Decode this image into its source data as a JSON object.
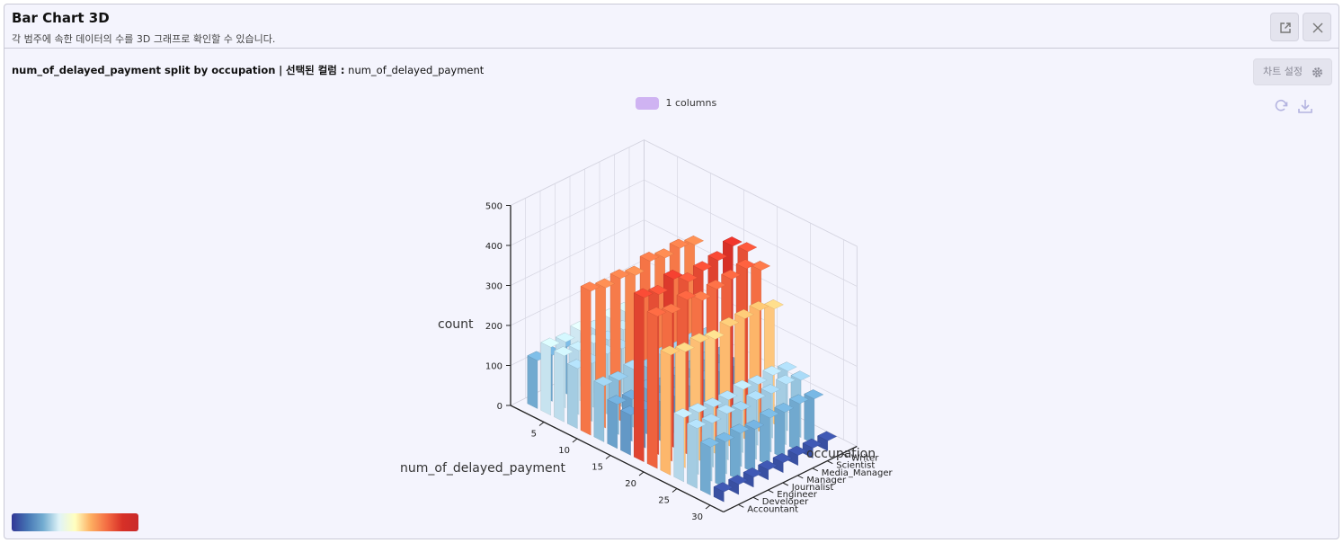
{
  "header": {
    "title": "Bar Chart 3D",
    "subtitle": "각 범주에 속한 데이터의 수를 3D 그래프로 확인할 수 있습니다."
  },
  "caption": {
    "main": "num_of_delayed_payment split by occupation",
    "separator": "|",
    "selected_label": "선택된 컬럼 :",
    "selected_value": "num_of_delayed_payment"
  },
  "settings_label": "차트 설정",
  "legend_label": "1 columns",
  "icons": {
    "expand": "external-link-icon",
    "close": "close-icon",
    "settings": "gear-icon",
    "refresh": "refresh-icon",
    "download": "download-icon"
  },
  "colors": {
    "accent_legend": "#cfb3f2",
    "colorscale": [
      "#313695",
      "#4575b4",
      "#74add1",
      "#e0f3f8",
      "#ffffbf",
      "#fdae61",
      "#f46d43",
      "#d73027"
    ]
  },
  "chart_data": {
    "type": "bar3d",
    "xlabel": "num_of_delayed_payment",
    "ylabel": "occupation",
    "zlabel": "count",
    "x_ticks": [
      "5",
      "10",
      "15",
      "20",
      "25",
      "30"
    ],
    "y_ticks": [
      "Accountant",
      "Developer",
      "Engineer",
      "Journalist",
      "Manager",
      "Media_Manager",
      "Scientist",
      "Writer"
    ],
    "z_ticks": [
      "0",
      "100",
      "200",
      "300",
      "400",
      "500"
    ],
    "zlim": [
      0,
      500
    ],
    "x_values": [
      0,
      2,
      4,
      6,
      8,
      10,
      12,
      14,
      16,
      18,
      20,
      22,
      24,
      26,
      28
    ],
    "occupations": [
      "Accountant",
      "Developer",
      "Engineer",
      "Journalist",
      "Manager",
      "Media_Manager",
      "Scientist",
      "Writer"
    ],
    "series": [
      {
        "name": "Accountant",
        "values": [
          120,
          170,
          165,
          150,
          360,
          140,
          110,
          100,
          410,
          380,
          300,
          160,
          150,
          120,
          25
        ]
      },
      {
        "name": "Developer",
        "values": [
          115,
          165,
          160,
          145,
          350,
          135,
          105,
          95,
          400,
          370,
          290,
          155,
          145,
          115,
          25
        ]
      },
      {
        "name": "Engineer",
        "values": [
          118,
          175,
          160,
          150,
          355,
          145,
          112,
          98,
          420,
          385,
          295,
          150,
          150,
          118,
          25
        ]
      },
      {
        "name": "Journalist",
        "values": [
          112,
          160,
          150,
          145,
          345,
          130,
          100,
          92,
          395,
          365,
          285,
          150,
          140,
          110,
          25
        ]
      },
      {
        "name": "Manager",
        "values": [
          122,
          170,
          158,
          148,
          362,
          142,
          108,
          100,
          405,
          375,
          298,
          158,
          148,
          120,
          25
        ]
      },
      {
        "name": "Media_Manager",
        "values": [
          117,
          168,
          162,
          147,
          352,
          138,
          106,
          97,
          412,
          382,
          300,
          152,
          146,
          116,
          25
        ]
      },
      {
        "name": "Scientist",
        "values": [
          119,
          172,
          166,
          152,
          358,
          141,
          110,
          99,
          430,
          390,
          302,
          157,
          151,
          119,
          25
        ]
      },
      {
        "name": "Writer",
        "values": [
          114,
          166,
          155,
          146,
          348,
          136,
          104,
          94,
          398,
          368,
          288,
          149,
          143,
          113,
          25
        ]
      }
    ]
  }
}
